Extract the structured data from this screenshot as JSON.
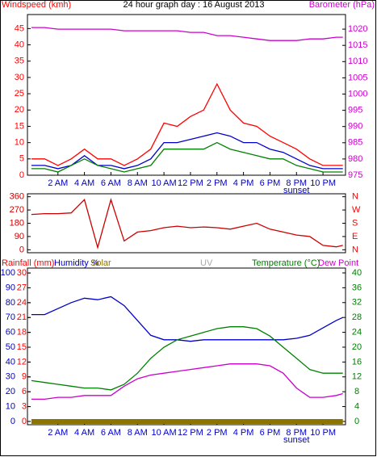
{
  "chart_data": [
    {
      "type": "line",
      "title": "24 hour graph day : 16 August 2013",
      "ylabel": "Windspeed (kmh)",
      "y2label": "Barometer (hPa)",
      "x": [
        0,
        1,
        2,
        3,
        4,
        5,
        6,
        7,
        8,
        9,
        10,
        11,
        12,
        13,
        14,
        15,
        16,
        17,
        18,
        19,
        20,
        21,
        22,
        23,
        23.5
      ],
      "xlim": [
        -0.3,
        23.7
      ],
      "xticks": [
        {
          "value": 2,
          "label": "2 AM"
        },
        {
          "value": 4,
          "label": "4 AM"
        },
        {
          "value": 6,
          "label": "6 AM"
        },
        {
          "value": 8,
          "label": "8 AM"
        },
        {
          "value": 10,
          "label": "10 AM"
        },
        {
          "value": 12,
          "label": "12 PM"
        },
        {
          "value": 14,
          "label": "2 PM"
        },
        {
          "value": 16,
          "label": "4 PM"
        },
        {
          "value": 18,
          "label": "6 PM"
        },
        {
          "value": 20,
          "label": "8 PM"
        },
        {
          "value": 22,
          "label": "10 PM"
        }
      ],
      "ylim": [
        0,
        49.3
      ],
      "yticks": [
        0,
        5,
        10,
        15,
        20,
        25,
        30,
        35,
        40,
        45
      ],
      "y2lim": [
        975,
        1024.5
      ],
      "y2ticks": [
        975,
        980,
        985,
        990,
        995,
        1000,
        1005,
        1010,
        1015,
        1020
      ],
      "annotations": [
        {
          "text": "sunset",
          "x": 20
        }
      ],
      "series": [
        {
          "color": "#ff0000",
          "values": [
            5,
            5,
            3,
            5,
            8,
            5,
            5,
            3,
            5,
            8,
            16,
            15,
            18,
            20,
            28,
            20,
            16,
            15,
            12,
            10,
            8,
            5,
            3,
            3,
            3
          ]
        },
        {
          "color": "#0000cc",
          "values": [
            3,
            3,
            2,
            3,
            6,
            3,
            3,
            2,
            3,
            5,
            10,
            10,
            11,
            12,
            13,
            12,
            10,
            10,
            8,
            7,
            5,
            3,
            2,
            2,
            2
          ]
        },
        {
          "color": "#008000",
          "values": [
            2,
            2,
            1,
            3,
            5,
            3,
            2,
            1,
            2,
            3,
            8,
            8,
            8,
            8,
            10,
            8,
            7,
            6,
            5,
            5,
            3,
            2,
            1,
            1,
            1
          ]
        },
        {
          "color": "#cc00cc",
          "axis": "y2",
          "values": [
            1020.5,
            1020.5,
            1020,
            1020,
            1020,
            1020,
            1020,
            1019.5,
            1019.5,
            1019.5,
            1019.5,
            1019.5,
            1019,
            1019,
            1018,
            1018,
            1017.5,
            1017,
            1016.5,
            1016.5,
            1016.5,
            1017,
            1017,
            1017.5,
            1017.5
          ]
        }
      ]
    },
    {
      "type": "line",
      "x": [
        0,
        1,
        2,
        3,
        4,
        5,
        6,
        7,
        8,
        9,
        10,
        11,
        12,
        13,
        14,
        15,
        16,
        17,
        18,
        19,
        20,
        21,
        22,
        23,
        23.5
      ],
      "xlim": [
        -0.3,
        23.7
      ],
      "ylim": [
        -20,
        380
      ],
      "yticks": [
        0,
        90,
        180,
        270,
        360
      ],
      "y2lim": [
        -20,
        380
      ],
      "y2ticks": [
        {
          "value": 360,
          "label": "N"
        },
        {
          "value": 270,
          "label": "W"
        },
        {
          "value": 180,
          "label": "S"
        },
        {
          "value": 90,
          "label": "E"
        },
        {
          "value": 0,
          "label": "N"
        }
      ],
      "series": [
        {
          "color": "#cc0000",
          "values": [
            240,
            245,
            245,
            250,
            340,
            15,
            340,
            60,
            120,
            130,
            150,
            160,
            150,
            155,
            150,
            140,
            160,
            180,
            140,
            120,
            100,
            90,
            30,
            20,
            30
          ]
        }
      ]
    },
    {
      "type": "line",
      "legend": "top",
      "x": [
        0,
        1,
        2,
        3,
        4,
        5,
        6,
        7,
        8,
        9,
        10,
        11,
        12,
        13,
        14,
        15,
        16,
        17,
        18,
        19,
        20,
        21,
        22,
        23,
        23.5
      ],
      "xlim": [
        -0.3,
        23.7
      ],
      "xticks": [
        {
          "value": 2,
          "label": "2 AM"
        },
        {
          "value": 4,
          "label": "4 AM"
        },
        {
          "value": 6,
          "label": "6 AM"
        },
        {
          "value": 8,
          "label": "8 AM"
        },
        {
          "value": 10,
          "label": "10 AM"
        },
        {
          "value": 12,
          "label": "12 PM"
        },
        {
          "value": 14,
          "label": "2 PM"
        },
        {
          "value": 16,
          "label": "4 PM"
        },
        {
          "value": 18,
          "label": "6 PM"
        },
        {
          "value": 20,
          "label": "8 PM"
        },
        {
          "value": 22,
          "label": "10 PM"
        }
      ],
      "ylim": [
        -2.2,
        103.3
      ],
      "yticks": [
        0,
        10,
        20,
        30,
        40,
        50,
        60,
        70,
        80,
        90,
        100
      ],
      "y3lim": [
        -0.66,
        31
      ],
      "y3ticks": [
        0,
        3,
        6,
        9,
        12,
        15,
        18,
        21,
        24,
        27,
        30
      ],
      "y2lim": [
        -0.88,
        41.3
      ],
      "y2ticks": [
        0,
        4,
        8,
        12,
        16,
        20,
        24,
        28,
        32,
        36,
        40
      ],
      "annotations": [
        {
          "text": "sunset",
          "x": 20
        }
      ],
      "series": [
        {
          "name": "Rainfall (mm)",
          "color": "#ff0000",
          "axis": "y3",
          "values": [
            0,
            0,
            0,
            0,
            0,
            0,
            0,
            0,
            0,
            0,
            0,
            0,
            0,
            0,
            0,
            0,
            0,
            0,
            0,
            0,
            0,
            0,
            0,
            0,
            0
          ]
        },
        {
          "name": "Humidity %",
          "color": "#0000cc",
          "values": [
            72,
            72,
            76,
            80,
            83,
            82,
            84,
            78,
            68,
            58,
            55,
            55,
            54,
            55,
            55,
            55,
            55,
            55,
            55,
            55,
            56,
            58,
            63,
            68,
            70
          ]
        },
        {
          "name": "Solar",
          "color": "#8b7500",
          "axis": "y3",
          "values": [
            0,
            0,
            0,
            0,
            0,
            0,
            0,
            0,
            0,
            0,
            0,
            0,
            0,
            0,
            0,
            0,
            0,
            0,
            0,
            0,
            0,
            0,
            0,
            0,
            0
          ]
        },
        {
          "name": "UV",
          "color": "#aaaaaa"
        },
        {
          "name": "Temperature (°C)",
          "color": "#008000",
          "axis": "y2",
          "values": [
            11,
            10.5,
            10,
            9.5,
            9,
            9,
            8.5,
            10,
            13,
            17,
            20,
            22,
            23,
            24,
            25,
            25.5,
            25.5,
            25,
            23,
            20,
            17,
            14,
            13,
            13,
            13
          ]
        },
        {
          "name": "Dew Point",
          "color": "#cc00cc",
          "axis": "y2",
          "values": [
            6,
            6,
            6.5,
            6.5,
            7,
            7,
            7,
            9.5,
            11.5,
            12.5,
            13,
            13.5,
            14,
            14.5,
            15,
            15.5,
            15.5,
            15.5,
            15,
            13,
            9,
            6.5,
            6.5,
            7,
            7.5
          ]
        }
      ]
    }
  ]
}
